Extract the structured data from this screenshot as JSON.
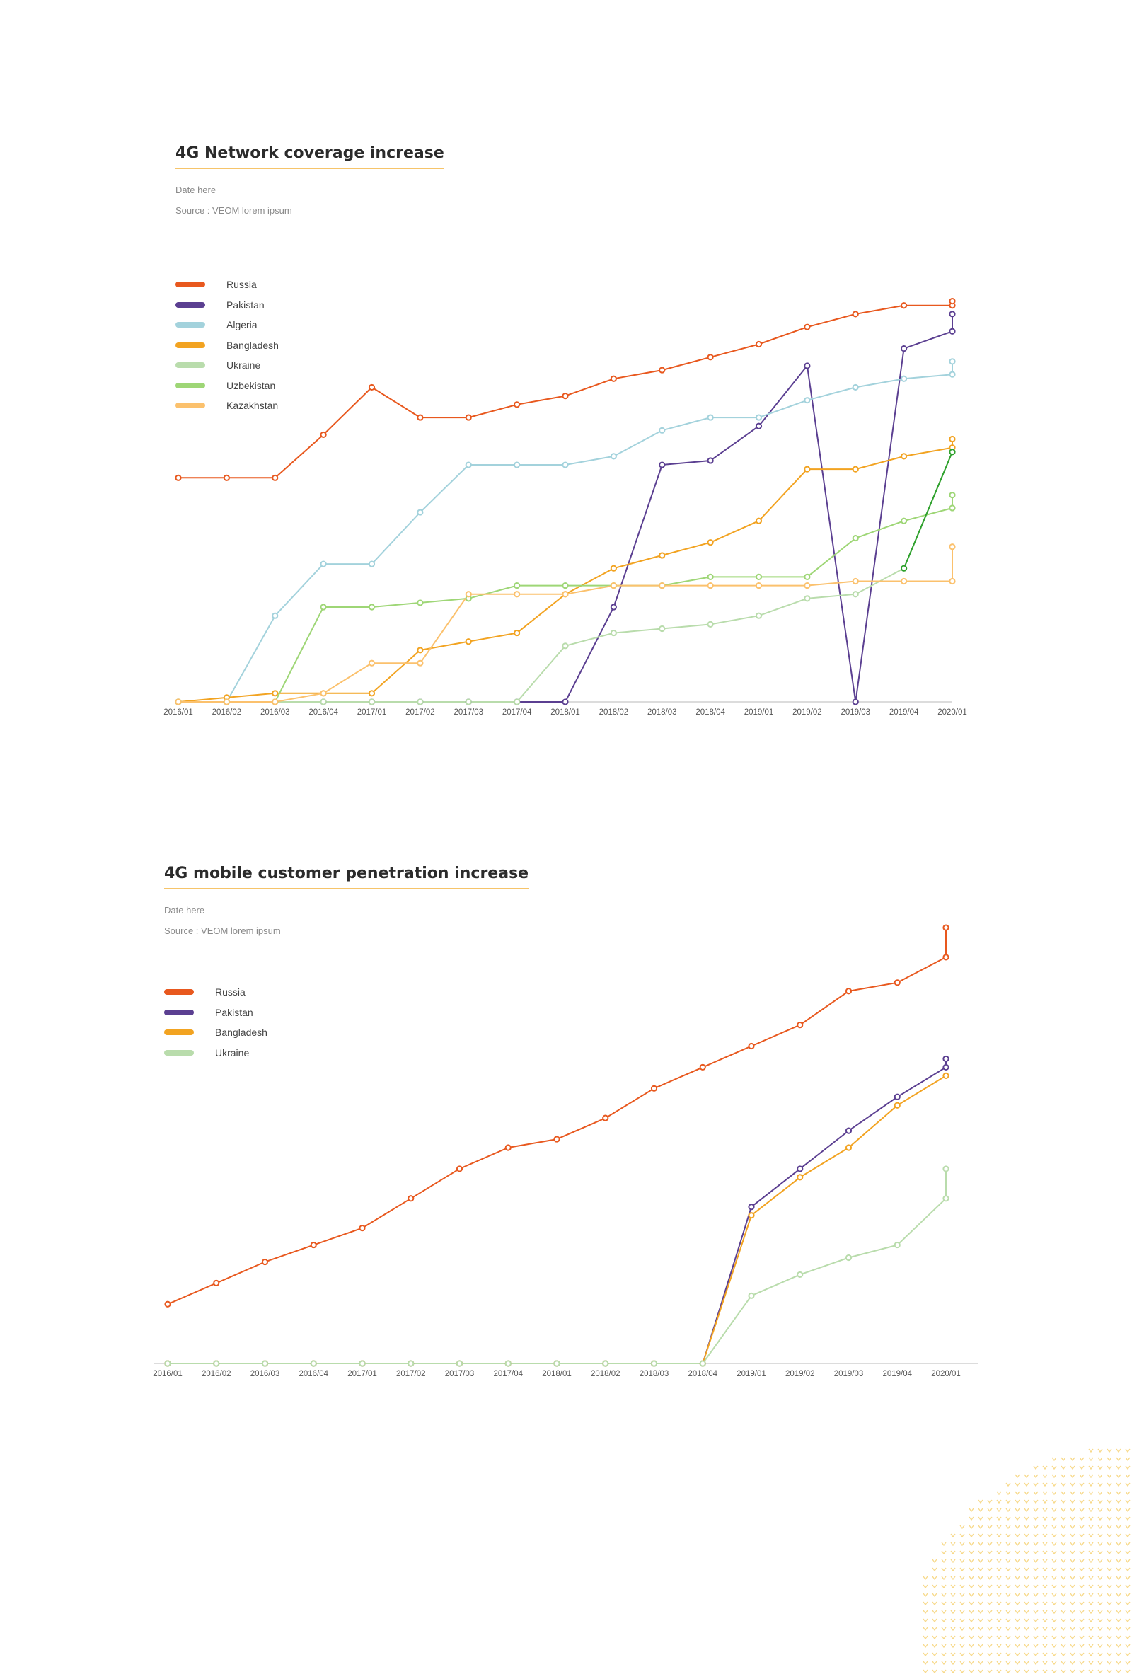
{
  "charts": [
    {
      "title": "4G Network coverage increase",
      "date": "Date here",
      "source": "Source : VEOM lorem ipsum"
    },
    {
      "title": "4G mobile customer penetration increase",
      "date": "Date here",
      "source": "Source : VEOM lorem ipsum"
    }
  ],
  "chart_data": [
    {
      "type": "line",
      "title": "4G Network coverage increase",
      "xlabel": "",
      "ylabel": "",
      "grid": false,
      "legend_position": "top-left",
      "ylim": [
        0,
        100
      ],
      "x": [
        "2016/01",
        "2016/02",
        "2016/03",
        "2016/04",
        "2017/01",
        "2017/02",
        "2017/03",
        "2017/04",
        "2018/01",
        "2018/02",
        "2018/03",
        "2018/04",
        "2019/01",
        "2019/02",
        "2019/03",
        "2019/04",
        "2020/01"
      ],
      "series": [
        {
          "name": "Russia",
          "color": "#e8581e",
          "values": [
            52,
            52,
            52,
            62,
            73,
            66,
            66,
            69,
            71,
            75,
            77,
            80,
            83,
            87,
            90,
            92,
            92
          ],
          "end_marker": 93
        },
        {
          "name": "Pakistan",
          "color": "#5b3f91",
          "values": [
            0,
            0,
            0,
            0,
            0,
            0,
            0,
            0,
            0,
            22,
            55,
            56,
            64,
            78,
            0,
            82,
            86
          ],
          "end_marker": 90
        },
        {
          "name": "Algeria",
          "color": "#a3d2dc",
          "values": [
            0,
            0,
            20,
            32,
            32,
            44,
            55,
            55,
            55,
            57,
            63,
            66,
            66,
            70,
            73,
            75,
            76
          ],
          "end_marker": 79
        },
        {
          "name": "Bangladesh",
          "color": "#f2a321",
          "values": [
            0,
            1,
            2,
            2,
            2,
            12,
            14,
            16,
            25,
            31,
            34,
            37,
            42,
            54,
            54,
            57,
            59
          ],
          "end_marker": 61
        },
        {
          "name": "Ukraine",
          "color": "#b9dcac",
          "values": [
            0,
            0,
            0,
            0,
            0,
            0,
            0,
            0,
            13,
            16,
            17,
            18,
            20,
            24,
            25,
            31,
            58
          ],
          "end_marker": 58
        },
        {
          "name": "Uzbekistan",
          "color": "#9ed676",
          "values": [
            0,
            0,
            0,
            22,
            22,
            23,
            24,
            27,
            27,
            27,
            27,
            29,
            29,
            29,
            38,
            42,
            45
          ],
          "end_marker": 48
        },
        {
          "name": "Kazakhstan",
          "color": "#fbc16d",
          "values": [
            0,
            0,
            0,
            2,
            9,
            9,
            25,
            25,
            25,
            27,
            27,
            27,
            27,
            27,
            28,
            28,
            28
          ],
          "end_marker": 36
        },
        {
          "color": "#2fa12e",
          "values": [
            null,
            null,
            null,
            null,
            null,
            null,
            null,
            null,
            null,
            null,
            null,
            null,
            null,
            null,
            null,
            31,
            58
          ]
        }
      ]
    },
    {
      "type": "line",
      "title": "4G mobile customer penetration increase",
      "xlabel": "",
      "ylabel": "",
      "grid": false,
      "legend_position": "top-left",
      "ylim": [
        0,
        100
      ],
      "x": [
        "2016/01",
        "2016/02",
        "2016/03",
        "2016/04",
        "2017/01",
        "2017/02",
        "2017/03",
        "2017/04",
        "2018/01",
        "2018/02",
        "2018/03",
        "2018/04",
        "2019/01",
        "2019/02",
        "2019/03",
        "2019/04",
        "2020/01"
      ],
      "series": [
        {
          "name": "Russia",
          "color": "#e8581e",
          "values": [
            14,
            19,
            24,
            28,
            32,
            39,
            46,
            51,
            53,
            58,
            65,
            70,
            75,
            80,
            88,
            90,
            96
          ],
          "end_marker": 103
        },
        {
          "name": "Pakistan",
          "color": "#5b3f91",
          "values": [
            0,
            0,
            0,
            0,
            0,
            0,
            0,
            0,
            0,
            0,
            0,
            0,
            37,
            46,
            55,
            63,
            70
          ],
          "end_marker": 72
        },
        {
          "name": "Bangladesh",
          "color": "#f2a321",
          "values": [
            0,
            0,
            0,
            0,
            0,
            0,
            0,
            0,
            0,
            0,
            0,
            0,
            35,
            44,
            51,
            61,
            68
          ]
        },
        {
          "name": "Ukraine",
          "color": "#b9dcac",
          "values": [
            0,
            0,
            0,
            0,
            0,
            0,
            0,
            0,
            0,
            0,
            0,
            0,
            16,
            21,
            25,
            28,
            39
          ],
          "end_marker": 46
        }
      ]
    }
  ]
}
